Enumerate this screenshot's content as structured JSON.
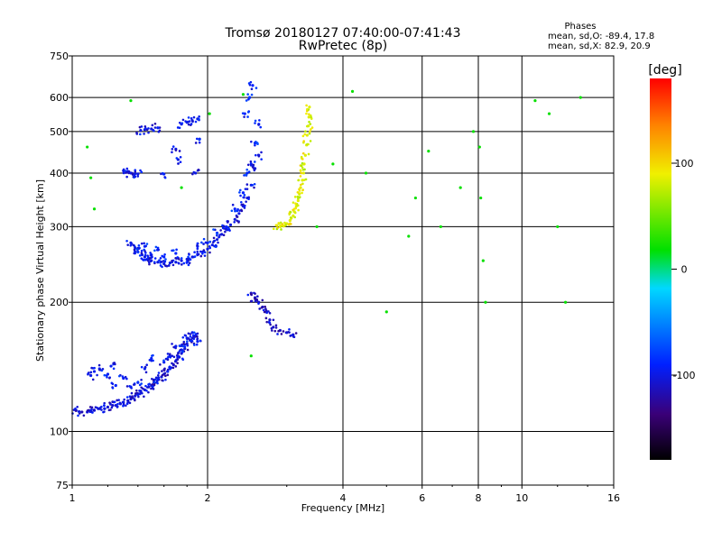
{
  "chart_data": {
    "type": "scatter",
    "title": "Tromsø 20180127 07:40:00-07:41:43",
    "subtitle": "RwPretec (8p)",
    "xlabel": "Frequency [MHz]",
    "ylabel": "Stationary phase Virtual Height [km]",
    "xscale": "log",
    "yscale": "log",
    "xlim": [
      1,
      16
    ],
    "ylim": [
      75,
      750
    ],
    "xticks": [
      1,
      2,
      4,
      6,
      8,
      10,
      16
    ],
    "yticks": [
      75,
      100,
      200,
      300,
      400,
      500,
      600,
      750
    ],
    "grid": true,
    "stats": {
      "heading": "Phases",
      "line_o": "mean, sd,O: -89.4, 17.8",
      "line_x": "mean, sd,X:  82.9, 20.9"
    },
    "colorbar": {
      "label": "[deg]",
      "range": [
        -180,
        180
      ],
      "ticks": [
        100,
        0,
        -100
      ]
    },
    "series": [
      {
        "trace": "lower-layer-O",
        "phase": -105,
        "x": [
          1.02,
          1.05,
          1.08,
          1.1,
          1.12,
          1.15,
          1.18,
          1.2,
          1.23,
          1.25,
          1.28,
          1.3,
          1.33,
          1.35,
          1.38,
          1.4,
          1.42,
          1.45,
          1.48,
          1.5,
          1.52,
          1.55,
          1.58,
          1.6,
          1.63,
          1.65,
          1.68,
          1.7,
          1.73,
          1.75,
          1.78,
          1.8,
          1.83,
          1.85,
          1.88
        ],
        "y": [
          112,
          111,
          111,
          112,
          112,
          113,
          113,
          114,
          115,
          115,
          116,
          117,
          118,
          119,
          121,
          122,
          123,
          125,
          127,
          128,
          130,
          132,
          134,
          136,
          138,
          140,
          143,
          146,
          149,
          152,
          156,
          160,
          163,
          165,
          167
        ]
      },
      {
        "trace": "lower-layer-scatter",
        "phase": -95,
        "x": [
          1.1,
          1.12,
          1.15,
          1.2,
          1.22,
          1.25,
          1.3,
          1.35,
          1.4,
          1.45,
          1.5,
          1.55,
          1.6,
          1.65,
          1.7,
          1.75,
          1.8,
          1.85,
          1.9
        ],
        "y": [
          135,
          138,
          140,
          136,
          142,
          128,
          133,
          127,
          130,
          140,
          148,
          132,
          145,
          150,
          158,
          155,
          165,
          170,
          162
        ]
      },
      {
        "trace": "middle-layer-O",
        "phase": -100,
        "x": [
          1.35,
          1.38,
          1.4,
          1.43,
          1.45,
          1.48,
          1.5,
          1.55,
          1.6,
          1.65,
          1.7,
          1.75,
          1.8,
          1.85,
          1.9,
          1.95,
          2.0,
          2.05,
          2.1,
          2.15,
          2.2,
          2.25,
          2.3,
          2.35,
          2.4,
          2.45,
          2.5,
          2.55,
          2.6
        ],
        "y": [
          275,
          268,
          262,
          258,
          255,
          252,
          250,
          248,
          246,
          247,
          248,
          250,
          252,
          255,
          258,
          262,
          266,
          272,
          280,
          288,
          296,
          303,
          312,
          322,
          335,
          350,
          375,
          410,
          440
        ]
      },
      {
        "trace": "middle-layer-scatter",
        "phase": -90,
        "x": [
          1.4,
          1.45,
          1.5,
          1.55,
          1.6,
          1.7,
          1.8,
          1.9,
          2.0,
          2.1,
          2.2,
          2.3,
          2.4,
          2.45,
          2.5,
          2.55,
          2.6,
          2.42,
          2.48,
          2.52
        ],
        "y": [
          262,
          270,
          258,
          265,
          255,
          260,
          248,
          270,
          275,
          290,
          300,
          330,
          360,
          400,
          420,
          470,
          520,
          550,
          600,
          640
        ]
      },
      {
        "trace": "upper-layer-X",
        "phase": 85,
        "x": [
          2.85,
          2.9,
          2.95,
          3.0,
          3.05,
          3.1,
          3.12,
          3.15,
          3.18,
          3.2,
          3.22,
          3.25,
          3.27,
          3.28,
          3.3,
          3.32,
          3.33,
          3.35,
          3.36,
          3.37
        ],
        "y": [
          302,
          300,
          301,
          305,
          310,
          318,
          325,
          335,
          345,
          358,
          370,
          385,
          400,
          420,
          440,
          465,
          490,
          515,
          540,
          570
        ]
      },
      {
        "trace": "F-region-echoes",
        "phase": -100,
        "x": [
          1.3,
          1.32,
          1.35,
          1.38,
          1.4,
          1.42,
          1.45,
          1.5,
          1.55,
          1.6,
          1.7,
          1.72,
          1.75,
          1.8,
          1.85,
          1.9,
          1.88,
          1.92
        ],
        "y": [
          405,
          402,
          400,
          399,
          398,
          503,
          505,
          507,
          510,
          398,
          455,
          430,
          520,
          525,
          530,
          535,
          400,
          480
        ]
      },
      {
        "trace": "lower-tail",
        "phase": -110,
        "x": [
          2.5,
          2.55,
          2.6,
          2.65,
          2.7,
          2.75,
          2.8,
          2.9,
          3.0,
          3.1
        ],
        "y": [
          210,
          205,
          200,
          195,
          190,
          182,
          175,
          172,
          170,
          168
        ]
      },
      {
        "trace": "sporadic",
        "phase": 20,
        "x": [
          1.08,
          1.1,
          1.12,
          1.35,
          1.75,
          2.02,
          2.4,
          2.5,
          3.5,
          3.8,
          4.2,
          4.5,
          5.0,
          5.6,
          5.8,
          6.2,
          6.6,
          7.3,
          7.8,
          8.05,
          8.1,
          8.2,
          8.3,
          10.7,
          11.5,
          12.0,
          12.5,
          13.5
        ],
        "y": [
          460,
          390,
          330,
          590,
          370,
          550,
          610,
          150,
          300,
          420,
          620,
          400,
          190,
          285,
          350,
          450,
          300,
          370,
          500,
          460,
          350,
          250,
          200,
          590,
          550,
          300,
          200,
          600
        ]
      }
    ]
  }
}
